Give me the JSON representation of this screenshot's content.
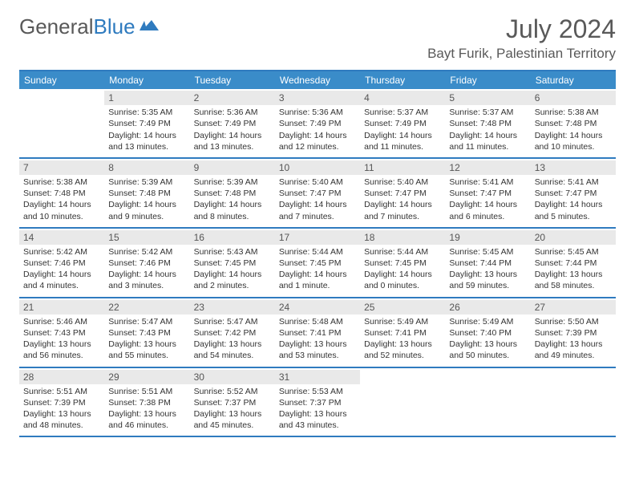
{
  "branding": {
    "logo_text1": "General",
    "logo_text2": "Blue",
    "logo_color1": "#595959",
    "logo_color2": "#2f7bbf"
  },
  "header": {
    "title": "July 2024",
    "location": "Bayt Furik, Palestinian Territory"
  },
  "colors": {
    "header_bg": "#3a8cc9",
    "header_border": "#2f7bbf",
    "daynum_bg": "#e9e9e9",
    "text": "#333333"
  },
  "day_names": [
    "Sunday",
    "Monday",
    "Tuesday",
    "Wednesday",
    "Thursday",
    "Friday",
    "Saturday"
  ],
  "weeks": [
    [
      {
        "empty": true
      },
      {
        "n": "1",
        "sunrise": "Sunrise: 5:35 AM",
        "sunset": "Sunset: 7:49 PM",
        "day1": "Daylight: 14 hours",
        "day2": "and 13 minutes."
      },
      {
        "n": "2",
        "sunrise": "Sunrise: 5:36 AM",
        "sunset": "Sunset: 7:49 PM",
        "day1": "Daylight: 14 hours",
        "day2": "and 13 minutes."
      },
      {
        "n": "3",
        "sunrise": "Sunrise: 5:36 AM",
        "sunset": "Sunset: 7:49 PM",
        "day1": "Daylight: 14 hours",
        "day2": "and 12 minutes."
      },
      {
        "n": "4",
        "sunrise": "Sunrise: 5:37 AM",
        "sunset": "Sunset: 7:49 PM",
        "day1": "Daylight: 14 hours",
        "day2": "and 11 minutes."
      },
      {
        "n": "5",
        "sunrise": "Sunrise: 5:37 AM",
        "sunset": "Sunset: 7:48 PM",
        "day1": "Daylight: 14 hours",
        "day2": "and 11 minutes."
      },
      {
        "n": "6",
        "sunrise": "Sunrise: 5:38 AM",
        "sunset": "Sunset: 7:48 PM",
        "day1": "Daylight: 14 hours",
        "day2": "and 10 minutes."
      }
    ],
    [
      {
        "n": "7",
        "sunrise": "Sunrise: 5:38 AM",
        "sunset": "Sunset: 7:48 PM",
        "day1": "Daylight: 14 hours",
        "day2": "and 10 minutes."
      },
      {
        "n": "8",
        "sunrise": "Sunrise: 5:39 AM",
        "sunset": "Sunset: 7:48 PM",
        "day1": "Daylight: 14 hours",
        "day2": "and 9 minutes."
      },
      {
        "n": "9",
        "sunrise": "Sunrise: 5:39 AM",
        "sunset": "Sunset: 7:48 PM",
        "day1": "Daylight: 14 hours",
        "day2": "and 8 minutes."
      },
      {
        "n": "10",
        "sunrise": "Sunrise: 5:40 AM",
        "sunset": "Sunset: 7:47 PM",
        "day1": "Daylight: 14 hours",
        "day2": "and 7 minutes."
      },
      {
        "n": "11",
        "sunrise": "Sunrise: 5:40 AM",
        "sunset": "Sunset: 7:47 PM",
        "day1": "Daylight: 14 hours",
        "day2": "and 7 minutes."
      },
      {
        "n": "12",
        "sunrise": "Sunrise: 5:41 AM",
        "sunset": "Sunset: 7:47 PM",
        "day1": "Daylight: 14 hours",
        "day2": "and 6 minutes."
      },
      {
        "n": "13",
        "sunrise": "Sunrise: 5:41 AM",
        "sunset": "Sunset: 7:47 PM",
        "day1": "Daylight: 14 hours",
        "day2": "and 5 minutes."
      }
    ],
    [
      {
        "n": "14",
        "sunrise": "Sunrise: 5:42 AM",
        "sunset": "Sunset: 7:46 PM",
        "day1": "Daylight: 14 hours",
        "day2": "and 4 minutes."
      },
      {
        "n": "15",
        "sunrise": "Sunrise: 5:42 AM",
        "sunset": "Sunset: 7:46 PM",
        "day1": "Daylight: 14 hours",
        "day2": "and 3 minutes."
      },
      {
        "n": "16",
        "sunrise": "Sunrise: 5:43 AM",
        "sunset": "Sunset: 7:45 PM",
        "day1": "Daylight: 14 hours",
        "day2": "and 2 minutes."
      },
      {
        "n": "17",
        "sunrise": "Sunrise: 5:44 AM",
        "sunset": "Sunset: 7:45 PM",
        "day1": "Daylight: 14 hours",
        "day2": "and 1 minute."
      },
      {
        "n": "18",
        "sunrise": "Sunrise: 5:44 AM",
        "sunset": "Sunset: 7:45 PM",
        "day1": "Daylight: 14 hours",
        "day2": "and 0 minutes."
      },
      {
        "n": "19",
        "sunrise": "Sunrise: 5:45 AM",
        "sunset": "Sunset: 7:44 PM",
        "day1": "Daylight: 13 hours",
        "day2": "and 59 minutes."
      },
      {
        "n": "20",
        "sunrise": "Sunrise: 5:45 AM",
        "sunset": "Sunset: 7:44 PM",
        "day1": "Daylight: 13 hours",
        "day2": "and 58 minutes."
      }
    ],
    [
      {
        "n": "21",
        "sunrise": "Sunrise: 5:46 AM",
        "sunset": "Sunset: 7:43 PM",
        "day1": "Daylight: 13 hours",
        "day2": "and 56 minutes."
      },
      {
        "n": "22",
        "sunrise": "Sunrise: 5:47 AM",
        "sunset": "Sunset: 7:43 PM",
        "day1": "Daylight: 13 hours",
        "day2": "and 55 minutes."
      },
      {
        "n": "23",
        "sunrise": "Sunrise: 5:47 AM",
        "sunset": "Sunset: 7:42 PM",
        "day1": "Daylight: 13 hours",
        "day2": "and 54 minutes."
      },
      {
        "n": "24",
        "sunrise": "Sunrise: 5:48 AM",
        "sunset": "Sunset: 7:41 PM",
        "day1": "Daylight: 13 hours",
        "day2": "and 53 minutes."
      },
      {
        "n": "25",
        "sunrise": "Sunrise: 5:49 AM",
        "sunset": "Sunset: 7:41 PM",
        "day1": "Daylight: 13 hours",
        "day2": "and 52 minutes."
      },
      {
        "n": "26",
        "sunrise": "Sunrise: 5:49 AM",
        "sunset": "Sunset: 7:40 PM",
        "day1": "Daylight: 13 hours",
        "day2": "and 50 minutes."
      },
      {
        "n": "27",
        "sunrise": "Sunrise: 5:50 AM",
        "sunset": "Sunset: 7:39 PM",
        "day1": "Daylight: 13 hours",
        "day2": "and 49 minutes."
      }
    ],
    [
      {
        "n": "28",
        "sunrise": "Sunrise: 5:51 AM",
        "sunset": "Sunset: 7:39 PM",
        "day1": "Daylight: 13 hours",
        "day2": "and 48 minutes."
      },
      {
        "n": "29",
        "sunrise": "Sunrise: 5:51 AM",
        "sunset": "Sunset: 7:38 PM",
        "day1": "Daylight: 13 hours",
        "day2": "and 46 minutes."
      },
      {
        "n": "30",
        "sunrise": "Sunrise: 5:52 AM",
        "sunset": "Sunset: 7:37 PM",
        "day1": "Daylight: 13 hours",
        "day2": "and 45 minutes."
      },
      {
        "n": "31",
        "sunrise": "Sunrise: 5:53 AM",
        "sunset": "Sunset: 7:37 PM",
        "day1": "Daylight: 13 hours",
        "day2": "and 43 minutes."
      },
      {
        "empty": true
      },
      {
        "empty": true
      },
      {
        "empty": true
      }
    ]
  ]
}
